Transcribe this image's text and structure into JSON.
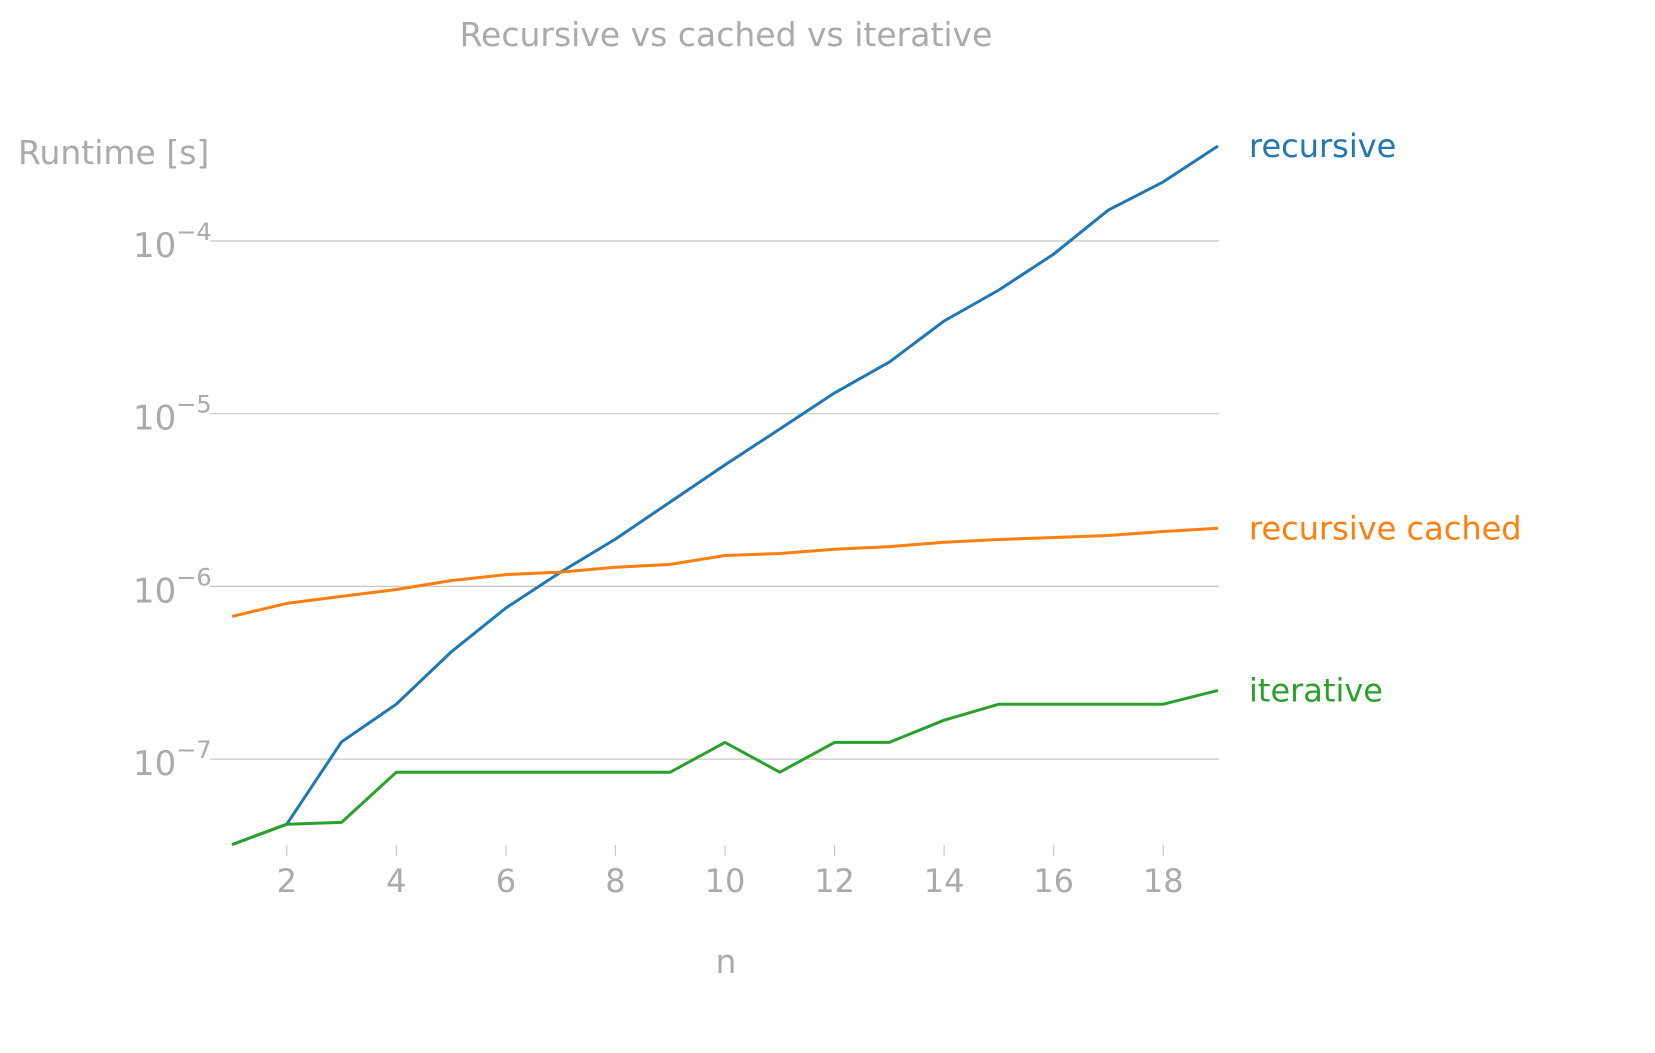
{
  "chart_data": {
    "type": "line",
    "title": "Recursive vs cached vs iterative",
    "xlabel": "n",
    "ylabel": "Runtime [s]",
    "yscale": "log",
    "xlim": [
      1,
      19
    ],
    "ylim": [
      3.2e-08,
      0.00036
    ],
    "x_ticks": [
      2,
      4,
      6,
      8,
      10,
      12,
      14,
      16,
      18
    ],
    "y_ticks": [
      {
        "value": 1e-07,
        "base": "10",
        "exp": "−7"
      },
      {
        "value": 1e-06,
        "base": "10",
        "exp": "−6"
      },
      {
        "value": 1e-05,
        "base": "10",
        "exp": "−5"
      },
      {
        "value": 0.0001,
        "base": "10",
        "exp": "−4"
      }
    ],
    "grid": "horizontal",
    "legend": "inline-right",
    "x": [
      1,
      2,
      3,
      4,
      5,
      6,
      7,
      8,
      9,
      10,
      11,
      12,
      13,
      14,
      15,
      16,
      17,
      18,
      19
    ],
    "series": [
      {
        "name": "recursive",
        "color": "#1f77b4",
        "values": [
          3.2e-08,
          4.2e-08,
          1.26e-07,
          2.08e-07,
          4.17e-07,
          7.5e-07,
          1.21e-06,
          1.88e-06,
          3.08e-06,
          5.05e-06,
          8.15e-06,
          1.32e-05,
          1.99e-05,
          3.44e-05,
          5.2e-05,
          8.4e-05,
          0.000151,
          0.00022,
          0.000355
        ]
      },
      {
        "name": "recursive cached",
        "color": "#ff7f0e",
        "values": [
          6.7e-07,
          7.97e-07,
          8.75e-07,
          9.6e-07,
          1.08e-06,
          1.17e-06,
          1.21e-06,
          1.29e-06,
          1.34e-06,
          1.51e-06,
          1.55e-06,
          1.64e-06,
          1.7e-06,
          1.8e-06,
          1.87e-06,
          1.92e-06,
          1.97e-06,
          2.08e-06,
          2.17e-06
        ]
      },
      {
        "name": "iterative",
        "color": "#2ca02c",
        "values": [
          3.2e-08,
          4.2e-08,
          4.3e-08,
          8.4e-08,
          8.4e-08,
          8.4e-08,
          8.4e-08,
          8.4e-08,
          8.4e-08,
          1.25e-07,
          8.4e-08,
          1.25e-07,
          1.25e-07,
          1.68e-07,
          2.08e-07,
          2.08e-07,
          2.08e-07,
          2.08e-07,
          2.5e-07
        ]
      }
    ]
  }
}
